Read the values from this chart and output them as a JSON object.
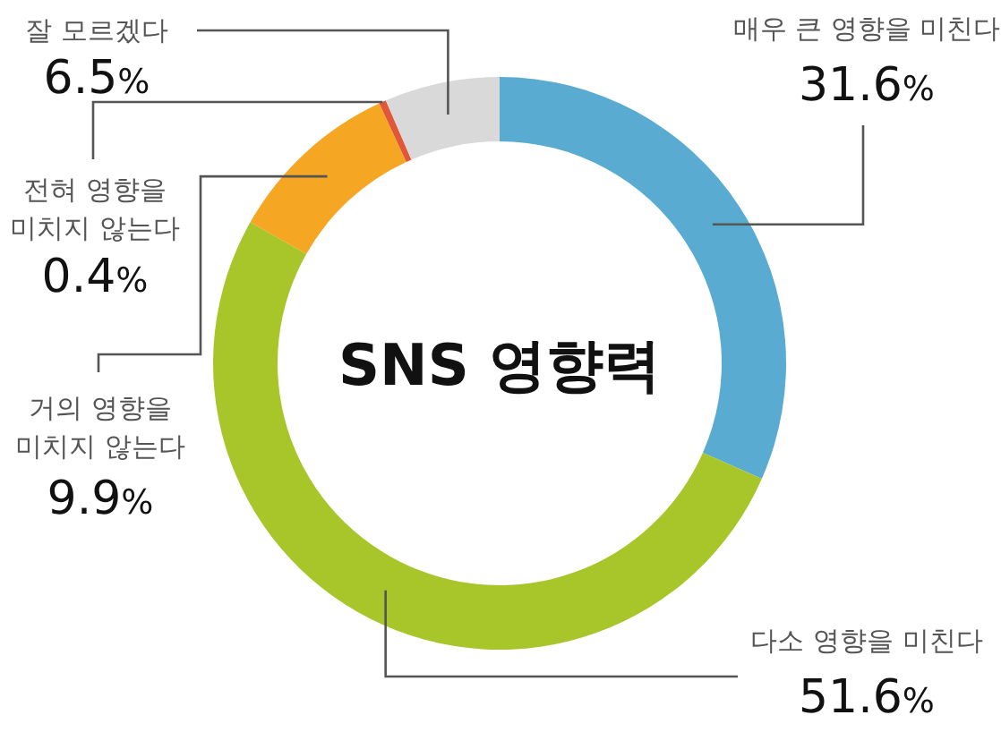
{
  "chart_data": {
    "type": "donut",
    "title": "SNS 영향력",
    "categories": [
      "매우 큰 영향을 미친다",
      "다소 영향을 미친다",
      "거의 영향을 미치지 않는다",
      "전혀 영향을 미치지 않는다",
      "잘 모르겠다"
    ],
    "values": [
      31.6,
      51.6,
      9.9,
      0.4,
      6.5
    ],
    "colors": [
      "#5aabd2",
      "#a8c52a",
      "#f5a623",
      "#e0573a",
      "#d9d9d9"
    ],
    "value_labels": [
      "31.6%",
      "51.6%",
      "9.9%",
      "0.4%",
      "6.5%"
    ]
  }
}
